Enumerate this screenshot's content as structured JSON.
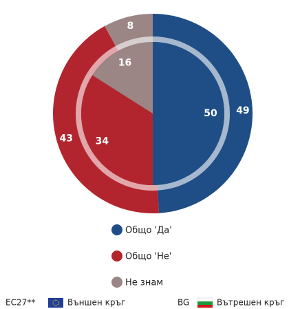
{
  "chart_data": {
    "type": "pie",
    "categories": [
      "Общо 'Да'",
      "Общо 'Не'",
      "Не знам"
    ],
    "colors": [
      "#1f4e86",
      "#b3252e",
      "#9b8585"
    ],
    "series": [
      {
        "name": "EC27**",
        "ring": "Външен кръг",
        "values": [
          49,
          43,
          8
        ]
      },
      {
        "name": "BG",
        "ring": "Вътрешен кръг",
        "values": [
          50,
          34,
          16
        ]
      }
    ]
  }
}
